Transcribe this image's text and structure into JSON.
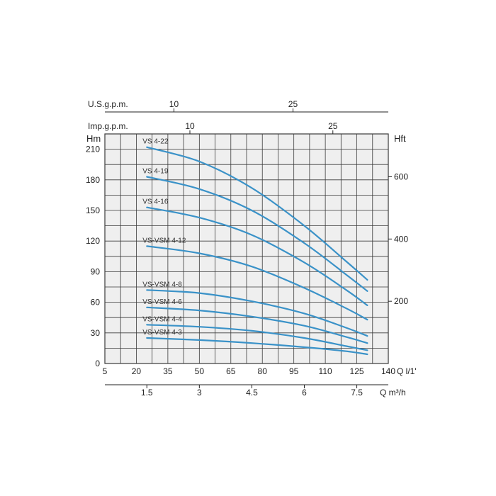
{
  "chart_data": {
    "type": "line",
    "title": "",
    "y_left_label": "Hm",
    "y_right_label": "Hft",
    "x_unit_label": "Q l/1'",
    "x2_unit_label": "Q m³/h",
    "top1_label": "U.S.g.p.m.",
    "top2_label": "Imp.g.p.m.",
    "xlim": [
      5,
      140
    ],
    "ylim": [
      0,
      225
    ],
    "grid": true,
    "x_ticks": [
      "5",
      "20",
      "35",
      "50",
      "65",
      "80",
      "95",
      "110",
      "125",
      "140"
    ],
    "y_ticks": [
      "0",
      "30",
      "60",
      "90",
      "120",
      "150",
      "180",
      "210"
    ],
    "x2_ticks": [
      {
        "label": "1.5",
        "q": 25
      },
      {
        "label": "3",
        "q": 50
      },
      {
        "label": "4.5",
        "q": 75
      },
      {
        "label": "6",
        "q": 100
      },
      {
        "label": "7.5",
        "q": 125
      }
    ],
    "right_ticks": [
      {
        "label": "200",
        "y": 61
      },
      {
        "label": "400",
        "y": 122
      },
      {
        "label": "600",
        "y": 183
      }
    ],
    "top1_ticks": [
      {
        "label": "10",
        "q": 37.9
      },
      {
        "label": "25",
        "q": 94.6
      }
    ],
    "top2_ticks": [
      {
        "label": "10",
        "q": 45.5
      },
      {
        "label": "25",
        "q": 113.6
      }
    ],
    "series": [
      {
        "name": "VS 4-22",
        "x": [
          25,
          50,
          75,
          100,
          120,
          130
        ],
        "y": [
          212,
          198,
          172,
          135,
          100,
          82
        ]
      },
      {
        "name": "VS 4-19",
        "x": [
          25,
          50,
          75,
          100,
          120,
          130
        ],
        "y": [
          183,
          171,
          150,
          118,
          87,
          71
        ]
      },
      {
        "name": "VS 4-16",
        "x": [
          25,
          50,
          75,
          100,
          120,
          130
        ],
        "y": [
          153,
          143,
          126,
          99,
          72,
          57
        ]
      },
      {
        "name": "VS-VSM 4-12",
        "x": [
          25,
          50,
          75,
          100,
          120,
          130
        ],
        "y": [
          115,
          108,
          95,
          74,
          54,
          43
        ]
      },
      {
        "name": "VS-VSM 4-8",
        "x": [
          25,
          50,
          75,
          100,
          120,
          130
        ],
        "y": [
          72,
          69,
          61,
          49,
          35,
          27
        ]
      },
      {
        "name": "VS-VSM 4-6",
        "x": [
          25,
          50,
          75,
          100,
          120,
          130
        ],
        "y": [
          55,
          52,
          46,
          37,
          26,
          20
        ]
      },
      {
        "name": "VS-VSM 4-4",
        "x": [
          25,
          50,
          75,
          100,
          120,
          130
        ],
        "y": [
          38,
          36,
          32,
          25,
          17,
          13
        ]
      },
      {
        "name": "VS-VSM 4-3",
        "x": [
          25,
          50,
          75,
          100,
          120,
          130
        ],
        "y": [
          25,
          23,
          20,
          16,
          12,
          9
        ]
      }
    ],
    "colors": {
      "curve": "#3a92c8",
      "grid": "#3a3a3a",
      "plot_bg": "#efefef",
      "text": "#222222"
    }
  }
}
